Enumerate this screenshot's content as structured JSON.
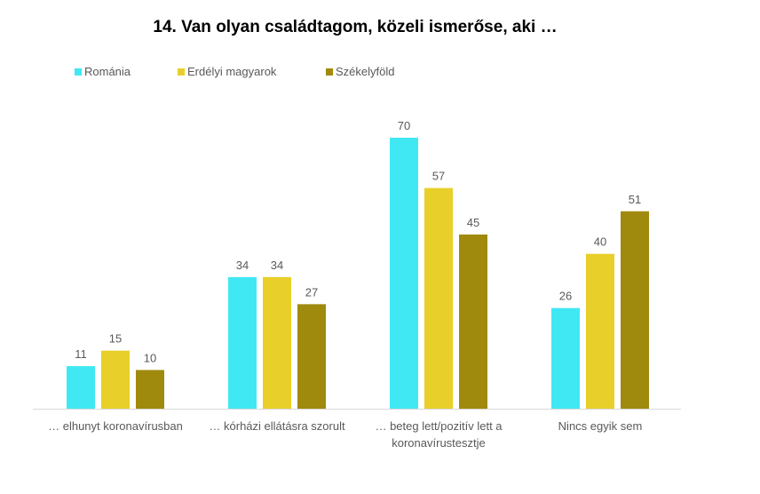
{
  "chart_data": {
    "type": "bar",
    "title": "14. Van olyan családtagom, közeli ismerőse, aki …",
    "categories": [
      [
        "… elhunyt koronavírusban"
      ],
      [
        "… kórházi ellátásra szorult"
      ],
      [
        "… beteg lett/pozitív lett a",
        "koronavírustesztje"
      ],
      [
        "Nincs egyik sem"
      ]
    ],
    "series": [
      {
        "name": "Románia",
        "color": "#40E8F4",
        "values": [
          11,
          34,
          70,
          26
        ]
      },
      {
        "name": "Erdélyi magyarok",
        "color": "#E8CF29",
        "values": [
          15,
          34,
          57,
          40
        ]
      },
      {
        "name": "Székelyföld",
        "color": "#A08A0E",
        "values": [
          10,
          27,
          45,
          51
        ]
      }
    ],
    "ylim": [
      0,
      70
    ],
    "grid": false,
    "legend": "top-left",
    "xlabel": "",
    "ylabel": ""
  }
}
